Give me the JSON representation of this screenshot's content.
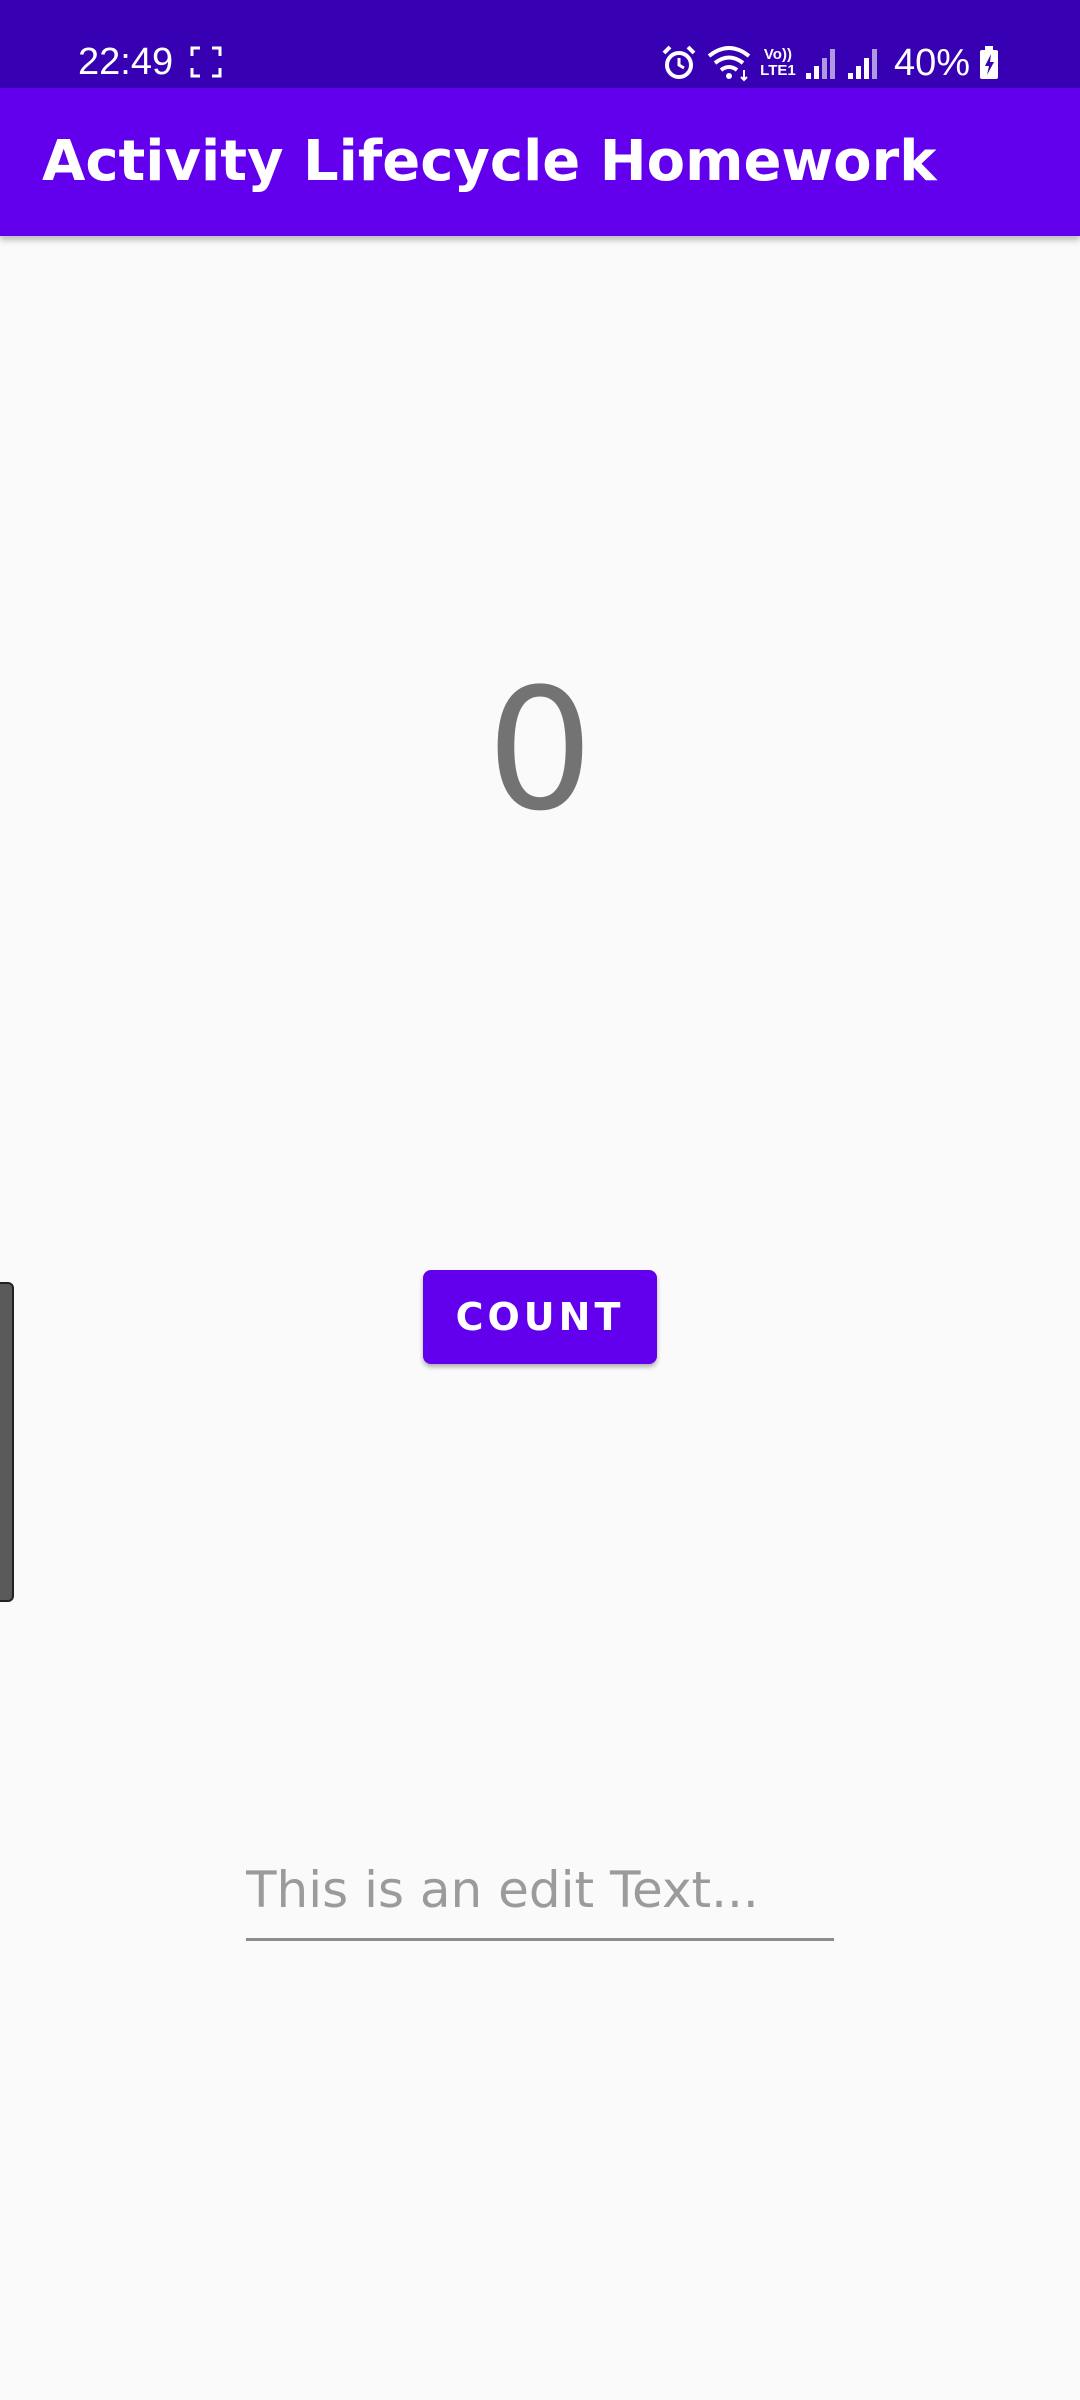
{
  "status_bar": {
    "time": "22:49",
    "battery": "40%",
    "volte_label": "Vo)) LTE1",
    "icons": [
      "screenshot-icon",
      "alarm-icon",
      "wifi-icon",
      "volte-icon",
      "signal-icon",
      "signal-icon",
      "battery-charging-icon"
    ]
  },
  "app_bar": {
    "title": "Activity Lifecycle Homework"
  },
  "main": {
    "count_value": "0",
    "count_button_label": "COUNT",
    "edit_text_placeholder": "This is an edit Text..."
  },
  "colors": {
    "status_bar": "#3700b3",
    "primary": "#6200ee",
    "background": "#fbfafa",
    "count_text": "#737373"
  }
}
